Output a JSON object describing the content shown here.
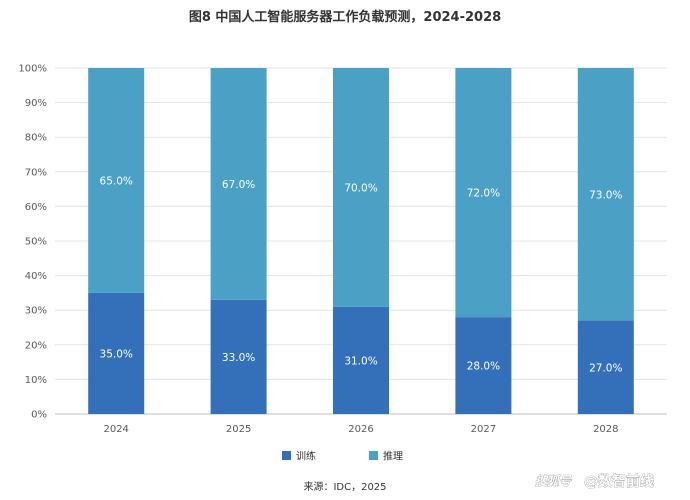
{
  "chart_data": {
    "type": "bar",
    "stacked": true,
    "title": "图8 中国人工智能服务器工作负载预测，2024-2028",
    "categories": [
      "2024",
      "2025",
      "2026",
      "2027",
      "2028"
    ],
    "series": [
      {
        "name": "训练",
        "values": [
          35.0,
          33.0,
          31.0,
          28.0,
          27.0
        ],
        "labels": [
          "35.0%",
          "33.0%",
          "31.0%",
          "28.0%",
          "27.0%"
        ],
        "color": "#3370b9"
      },
      {
        "name": "推理",
        "values": [
          65.0,
          67.0,
          70.0,
          72.0,
          73.0
        ],
        "labels": [
          "65.0%",
          "67.0%",
          "70.0%",
          "72.0%",
          "73.0%"
        ],
        "color": "#4aa0c5"
      }
    ],
    "y_ticks": [
      "0%",
      "10%",
      "20%",
      "30%",
      "40%",
      "50%",
      "60%",
      "70%",
      "80%",
      "90%",
      "100%"
    ],
    "ylim": [
      0,
      100
    ],
    "grid": true,
    "legend_position": "bottom",
    "source": "来源：IDC，2025"
  },
  "watermark": {
    "part1": "搜狐号",
    "part2": "@数智前线"
  }
}
